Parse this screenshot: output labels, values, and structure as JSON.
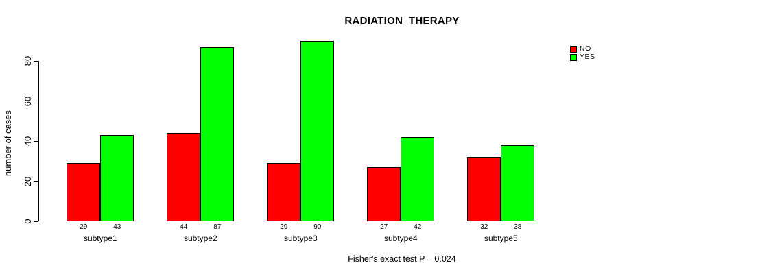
{
  "figure": {
    "title": "RADIATION_THERAPY",
    "y_axis_label": "number of cases",
    "caption": "Fisher's exact test P = 0.024"
  },
  "legend": {
    "items": [
      {
        "label": "NO",
        "color": "#ff0000"
      },
      {
        "label": "YES",
        "color": "#00ff00"
      }
    ]
  },
  "chart_data": {
    "type": "bar",
    "title": "RADIATION_THERAPY",
    "categories": [
      "subtype1",
      "subtype2",
      "subtype3",
      "subtype4",
      "subtype5"
    ],
    "series": [
      {
        "name": "NO",
        "color": "#ff0000",
        "values": [
          29,
          44,
          29,
          27,
          32
        ]
      },
      {
        "name": "YES",
        "color": "#00ff00",
        "values": [
          43,
          87,
          90,
          42,
          38
        ]
      }
    ],
    "xlabel": "",
    "ylabel": "number of cases",
    "yticks": [
      0,
      20,
      40,
      60,
      80
    ],
    "ylim": [
      0,
      90
    ],
    "grid": false,
    "legend_position": "top-right",
    "bar_value_labels": true,
    "annotation": "Fisher's exact test P = 0.024"
  }
}
